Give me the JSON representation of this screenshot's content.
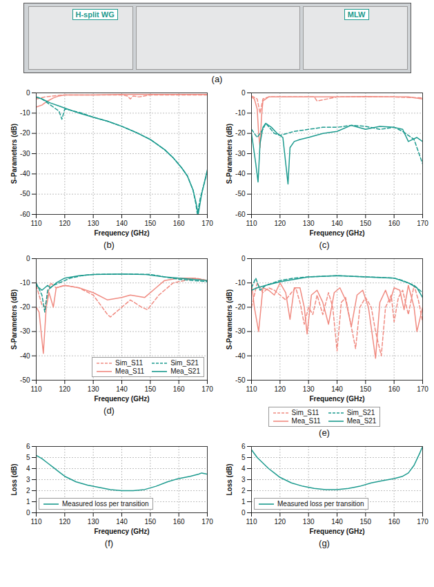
{
  "photo": {
    "labels": [
      "H-split WG",
      "MLW"
    ],
    "caption": "(a)"
  },
  "chart_data": [
    {
      "type": "line",
      "caption": "(b)",
      "x_label": "Frequency (GHz)",
      "y_label": "S-Parameters (dB)",
      "xlim": [
        110,
        170
      ],
      "xticks": [
        110,
        120,
        130,
        140,
        150,
        160,
        170
      ],
      "ylim": [
        -60,
        0
      ],
      "yticks": [
        0,
        -10,
        -20,
        -30,
        -40,
        -50,
        -60
      ],
      "grid": true,
      "series": [
        {
          "name": "Sim_S11",
          "color": "#f08a80",
          "line_style": "dashed",
          "x": [
            110,
            113,
            116,
            120,
            130,
            140,
            142,
            143,
            144,
            146,
            150,
            155,
            160,
            165,
            170
          ],
          "values": [
            -3,
            -2,
            -1.5,
            -1,
            -1,
            -1,
            -1.5,
            -3,
            -1.5,
            -2,
            -1,
            -1,
            -1,
            -1,
            -1
          ]
        },
        {
          "name": "Mea_S11",
          "color": "#f08a80",
          "line_style": "solid",
          "x": [
            110,
            112,
            114,
            116,
            118,
            120,
            125,
            130,
            140,
            150,
            160,
            170
          ],
          "values": [
            -7,
            -6,
            -4,
            -2.5,
            -1.5,
            -1,
            -1,
            -1,
            -0.8,
            -0.8,
            -0.8,
            -0.8
          ]
        },
        {
          "name": "Sim_S21",
          "color": "#1b9a8e",
          "line_style": "dashed",
          "x": [
            110,
            112,
            114,
            116,
            118,
            119,
            120,
            122,
            126,
            130,
            135,
            140,
            145,
            150,
            155,
            158,
            161,
            163,
            165,
            166,
            166.5,
            167.5,
            170
          ],
          "values": [
            -2,
            -3,
            -5,
            -7,
            -9,
            -13,
            -8,
            -8.5,
            -10,
            -12,
            -14,
            -16.5,
            -19.5,
            -23,
            -28,
            -32,
            -37,
            -41,
            -48,
            -55,
            -60,
            -52,
            -39
          ]
        },
        {
          "name": "Mea_S21",
          "color": "#1b9a8e",
          "line_style": "solid",
          "x": [
            110,
            112,
            115,
            118,
            121,
            125,
            130,
            135,
            140,
            145,
            150,
            155,
            158,
            161,
            163,
            165,
            166,
            166.8,
            168,
            170
          ],
          "values": [
            -2,
            -3,
            -5,
            -6.5,
            -8,
            -10,
            -12,
            -14,
            -16.5,
            -19.5,
            -23,
            -28,
            -32,
            -37,
            -41,
            -48,
            -54,
            -60,
            -50,
            -38
          ]
        }
      ]
    },
    {
      "type": "line",
      "caption": "(c)",
      "x_label": "Frequency (GHz)",
      "y_label": "S-Parameters (dB)",
      "xlim": [
        110,
        170
      ],
      "xticks": [
        110,
        120,
        130,
        140,
        150,
        160,
        170
      ],
      "ylim": [
        -60,
        0
      ],
      "yticks": [
        0,
        -10,
        -20,
        -30,
        -40,
        -50,
        -60
      ],
      "grid": true,
      "series": [
        {
          "name": "Sim_S11",
          "color": "#f08a80",
          "line_style": "dashed",
          "x": [
            110,
            112,
            113,
            114,
            116,
            120,
            130,
            132,
            133,
            140,
            150,
            160,
            170
          ],
          "values": [
            -1.5,
            -3,
            -10,
            -3,
            -2,
            -2,
            -2,
            -2,
            -4,
            -2,
            -2,
            -2,
            -2.5
          ]
        },
        {
          "name": "Mea_S11",
          "color": "#f08a80",
          "line_style": "solid",
          "x": [
            110,
            111,
            112,
            112.5,
            113,
            113.5,
            114,
            116,
            120,
            130,
            140,
            150,
            160,
            165,
            170
          ],
          "values": [
            -2,
            -3,
            -8,
            -20,
            -27,
            -12,
            -4,
            -2,
            -2,
            -2,
            -2,
            -1.8,
            -2,
            -2,
            -3
          ]
        },
        {
          "name": "Sim_S21",
          "color": "#1b9a8e",
          "line_style": "dashed",
          "x": [
            110,
            112,
            114,
            115,
            118,
            120,
            125,
            130,
            135,
            140,
            145,
            150,
            155,
            160,
            163,
            167,
            170
          ],
          "values": [
            -18,
            -22,
            -18,
            -15,
            -20,
            -21,
            -19,
            -18,
            -17,
            -17,
            -16,
            -16.5,
            -18,
            -17,
            -19,
            -23,
            -35
          ]
        },
        {
          "name": "Mea_S21",
          "color": "#1b9a8e",
          "line_style": "solid",
          "x": [
            110,
            111.5,
            112.3,
            113,
            114,
            115,
            117,
            119,
            121,
            122.8,
            123.5,
            125,
            127,
            130,
            135,
            140,
            145,
            150,
            155,
            160,
            163,
            165,
            168,
            170
          ],
          "values": [
            -20,
            -35,
            -44,
            -25,
            -17,
            -15,
            -17,
            -20,
            -22,
            -45,
            -27,
            -24,
            -23,
            -22,
            -20,
            -19,
            -16,
            -18,
            -16.5,
            -17,
            -18,
            -24,
            -22,
            -24
          ]
        }
      ]
    },
    {
      "type": "line",
      "caption": "(d)",
      "x_label": "Frequency (GHz)",
      "y_label": "S-Parameters (dB)",
      "xlim": [
        110,
        170
      ],
      "xticks": [
        110,
        120,
        130,
        140,
        150,
        160,
        170
      ],
      "ylim": [
        -50,
        0
      ],
      "yticks": [
        0,
        -10,
        -20,
        -30,
        -40,
        -50
      ],
      "grid": true,
      "legend": "bottom-right",
      "series": [
        {
          "name": "Sim_S11",
          "color": "#f08a80",
          "line_style": "dashed",
          "x": [
            110,
            112,
            113,
            115,
            117,
            120,
            125,
            130,
            135,
            136,
            140,
            143,
            147,
            149,
            153,
            158,
            162,
            166,
            170
          ],
          "values": [
            -11,
            -19,
            -20,
            -10,
            -12,
            -11,
            -12,
            -15,
            -23,
            -24,
            -20,
            -17,
            -20,
            -21,
            -15,
            -10,
            -9,
            -8,
            -9
          ]
        },
        {
          "name": "Mea_S11",
          "color": "#f08a80",
          "line_style": "solid",
          "x": [
            110,
            111,
            112.5,
            113.5,
            114.5,
            116,
            117,
            120,
            125,
            130,
            135,
            140,
            143,
            148,
            152,
            155,
            160,
            165,
            170
          ],
          "values": [
            -20,
            -22,
            -39,
            -20,
            -14,
            -20,
            -12,
            -11,
            -12,
            -14,
            -17,
            -16,
            -15,
            -16,
            -12,
            -9,
            -8,
            -8,
            -9
          ]
        },
        {
          "name": "Sim_S21",
          "color": "#1b9a8e",
          "line_style": "dashed",
          "x": [
            110,
            112,
            113,
            114,
            116,
            118,
            122,
            126,
            130,
            140,
            150,
            155,
            160,
            165,
            170
          ],
          "values": [
            -10,
            -15,
            -22,
            -13,
            -11,
            -10,
            -8,
            -7,
            -6.5,
            -6.3,
            -6.5,
            -7.5,
            -8.5,
            -9,
            -9.5
          ]
        },
        {
          "name": "Mea_S21",
          "color": "#1b9a8e",
          "line_style": "solid",
          "x": [
            110,
            112,
            114,
            115,
            117,
            120,
            125,
            130,
            140,
            148,
            155,
            160,
            165,
            170
          ],
          "values": [
            -11,
            -13,
            -11,
            -12,
            -10,
            -8,
            -7,
            -6.5,
            -6.3,
            -6.5,
            -7.5,
            -8,
            -8.5,
            -9
          ]
        }
      ]
    },
    {
      "type": "line",
      "caption": "(e)",
      "x_label": "Frequency (GHz)",
      "y_label": "S-Parameters (dB)",
      "xlim": [
        110,
        170
      ],
      "xticks": [
        110,
        120,
        130,
        140,
        150,
        160,
        170
      ],
      "ylim": [
        -50,
        0
      ],
      "yticks": [
        0,
        -10,
        -20,
        -30,
        -40,
        -50
      ],
      "grid": true,
      "legend": "below",
      "series": [
        {
          "name": "Sim_S11",
          "color": "#f08a80",
          "line_style": "dashed",
          "x": [
            110,
            112,
            114,
            116,
            118,
            120,
            122,
            124,
            125.5,
            127,
            128.5,
            130,
            131.5,
            133,
            135,
            137,
            138.5,
            140,
            141.5,
            143,
            145,
            146.5,
            148,
            150,
            152,
            153.5,
            155.5,
            157,
            159,
            160,
            161.5,
            163,
            165,
            167,
            168.5,
            170
          ],
          "values": [
            -20,
            -10,
            -14,
            -12,
            -13,
            -15,
            -17,
            -14,
            -12,
            -18,
            -27,
            -20,
            -23,
            -15,
            -23,
            -14,
            -20,
            -38,
            -18,
            -16,
            -28,
            -37,
            -20,
            -16,
            -20,
            -30,
            -40,
            -20,
            -15,
            -26,
            -16,
            -13,
            -23,
            -11,
            -17,
            -26
          ]
        },
        {
          "name": "Mea_S11",
          "color": "#f08a80",
          "line_style": "solid",
          "x": [
            110,
            111,
            112.5,
            114,
            116,
            118,
            120,
            122,
            123.5,
            125,
            127,
            128.5,
            129.5,
            131,
            133,
            135,
            137,
            139,
            141,
            143,
            145,
            147,
            149,
            151,
            153.5,
            155,
            157,
            158.5,
            160,
            162,
            163.5,
            165,
            167,
            168,
            170
          ],
          "values": [
            -10,
            -20,
            -30,
            -12,
            -13,
            -15,
            -10,
            -14,
            -25,
            -12,
            -12,
            -20,
            -31,
            -15,
            -13,
            -18,
            -27,
            -14,
            -12,
            -17,
            -28,
            -15,
            -13,
            -20,
            -41,
            -18,
            -13,
            -18,
            -12,
            -13,
            -21,
            -11,
            -20,
            -30,
            -20
          ]
        },
        {
          "name": "Sim_S21",
          "color": "#1b9a8e",
          "line_style": "dashed",
          "x": [
            110,
            111.5,
            113,
            115,
            120,
            125,
            130,
            140,
            150,
            160,
            163,
            167,
            170
          ],
          "values": [
            -12,
            -8,
            -13,
            -11,
            -9,
            -8,
            -7.5,
            -7,
            -7.5,
            -8,
            -9,
            -11,
            -14
          ]
        },
        {
          "name": "Mea_S21",
          "color": "#1b9a8e",
          "line_style": "solid",
          "x": [
            110,
            112,
            115,
            120,
            125,
            130,
            140,
            150,
            160,
            165,
            168,
            170
          ],
          "values": [
            -13,
            -12,
            -11,
            -9.5,
            -8.5,
            -7.5,
            -7,
            -7.5,
            -8,
            -10,
            -12,
            -16
          ]
        }
      ]
    },
    {
      "type": "line",
      "caption": "(f)",
      "x_label": "Frequency (GHz)",
      "y_label": "Loss (dB)",
      "xlim": [
        110,
        170
      ],
      "xticks": [
        110,
        120,
        130,
        140,
        150,
        160,
        170
      ],
      "ylim": [
        0,
        6
      ],
      "yticks": [
        0,
        1,
        2,
        3,
        4,
        5,
        6
      ],
      "grid": true,
      "legend": "bottom-left",
      "series": [
        {
          "name": "Measured loss per transition",
          "color": "#1b9a8e",
          "line_style": "solid",
          "x": [
            110,
            112,
            114,
            116,
            118,
            120,
            124,
            128,
            132,
            136,
            140,
            144,
            148,
            152,
            156,
            160,
            164,
            167,
            168,
            170
          ],
          "values": [
            5.2,
            4.9,
            4.5,
            4.1,
            3.7,
            3.3,
            2.8,
            2.5,
            2.3,
            2.1,
            2.0,
            2.0,
            2.1,
            2.4,
            2.8,
            3.1,
            3.3,
            3.5,
            3.6,
            3.5
          ]
        }
      ]
    },
    {
      "type": "line",
      "caption": "(g)",
      "x_label": "Frequency (GHz)",
      "y_label": "Loss (dB)",
      "xlim": [
        110,
        170
      ],
      "xticks": [
        110,
        120,
        130,
        140,
        150,
        160,
        170
      ],
      "ylim": [
        0,
        6
      ],
      "yticks": [
        0,
        1,
        2,
        3,
        4,
        5,
        6
      ],
      "grid": true,
      "legend": "bottom-left",
      "series": [
        {
          "name": "Measured loss per transition",
          "color": "#1b9a8e",
          "line_style": "solid",
          "x": [
            110,
            112,
            114,
            116,
            118,
            120,
            124,
            128,
            132,
            136,
            140,
            144,
            148,
            152,
            156,
            160,
            163,
            165,
            167,
            169,
            170
          ],
          "values": [
            5.7,
            5.0,
            4.5,
            4.0,
            3.6,
            3.2,
            2.7,
            2.4,
            2.2,
            2.1,
            2.1,
            2.2,
            2.4,
            2.7,
            2.9,
            3.1,
            3.3,
            3.6,
            4.3,
            5.4,
            6.0
          ]
        }
      ]
    }
  ]
}
